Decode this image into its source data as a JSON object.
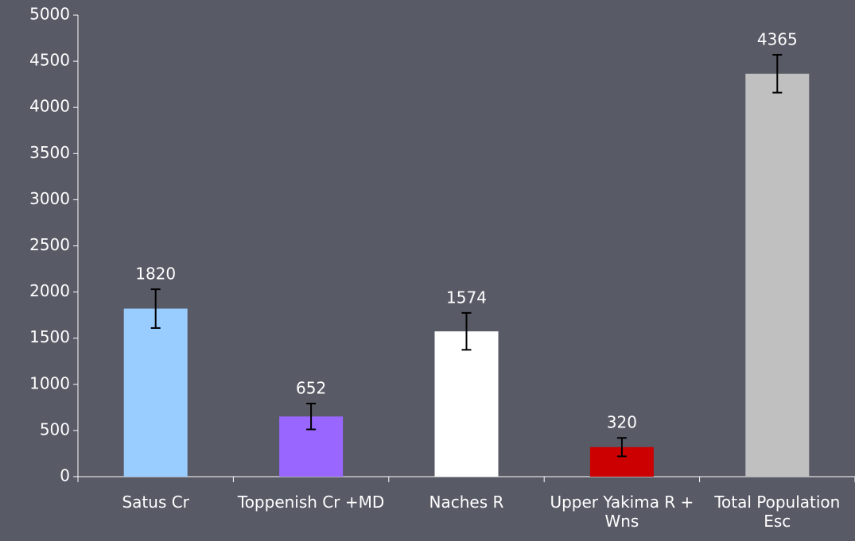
{
  "chart_data": {
    "type": "bar",
    "categories": [
      "Satus Cr",
      "Toppenish Cr +MD",
      "Naches R",
      "Upper Yakima R + Wns",
      "Total Population Esc"
    ],
    "values": [
      1820,
      652,
      1574,
      320,
      4365
    ],
    "errors": [
      210,
      140,
      200,
      100,
      205
    ],
    "colors": [
      "#99ccff",
      "#9966ff",
      "#ffffff",
      "#cc0000",
      "#c0c0c0"
    ],
    "ylim": [
      0,
      5000
    ],
    "yticks": [
      0,
      500,
      1000,
      1500,
      2000,
      2500,
      3000,
      3500,
      4000,
      4500,
      5000
    ]
  }
}
